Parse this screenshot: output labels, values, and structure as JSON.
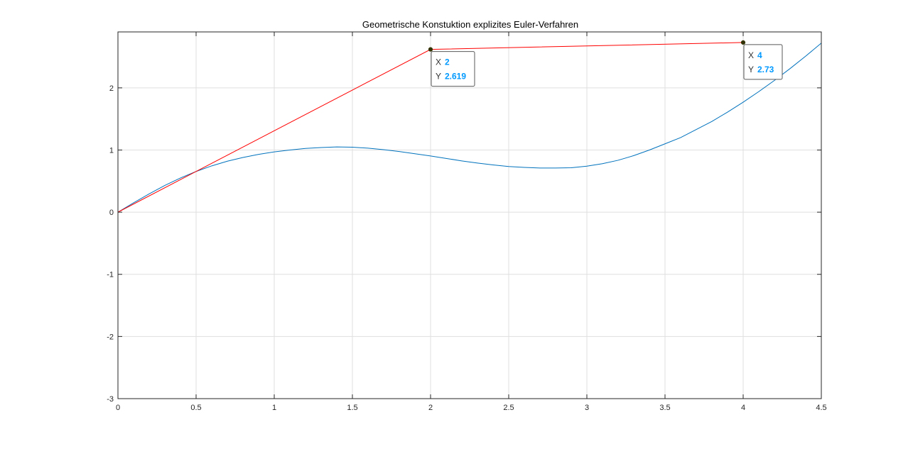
{
  "chart_data": {
    "type": "line",
    "title": "Geometrische Konstuktion explizites Euler-Verfahren",
    "xlabel": "",
    "ylabel": "",
    "xlim": [
      0,
      4.5
    ],
    "ylim": [
      -3,
      2.9
    ],
    "xticks": [
      0,
      0.5,
      1,
      1.5,
      2,
      2.5,
      3,
      3.5,
      4,
      4.5
    ],
    "xtick_labels": [
      "0",
      "0.5",
      "1",
      "1.5",
      "2",
      "2.5",
      "3",
      "3.5",
      "4",
      "4.5"
    ],
    "yticks": [
      -3,
      -2,
      -1,
      0,
      1,
      2
    ],
    "ytick_labels": [
      "-3",
      "-2",
      "-1",
      "0",
      "1",
      "2"
    ],
    "grid": true,
    "series": [
      {
        "color": "#0072bd",
        "x": [
          0,
          0.1,
          0.2,
          0.3,
          0.4,
          0.5,
          0.6,
          0.7,
          0.8,
          0.9,
          1.0,
          1.1,
          1.2,
          1.3,
          1.4,
          1.5,
          1.6,
          1.7,
          1.8,
          1.9,
          2.0,
          2.1,
          2.2,
          2.3,
          2.4,
          2.5,
          2.6,
          2.7,
          2.8,
          2.9,
          3.0,
          3.1,
          3.2,
          3.3,
          3.4,
          3.5,
          3.6,
          3.7,
          3.8,
          3.9,
          4.0,
          4.1,
          4.2,
          4.3,
          4.4,
          4.5
        ],
        "y": [
          0,
          0.15,
          0.295,
          0.43,
          0.55,
          0.655,
          0.745,
          0.82,
          0.88,
          0.93,
          0.97,
          1.0,
          1.025,
          1.04,
          1.05,
          1.045,
          1.03,
          1.005,
          0.975,
          0.94,
          0.905,
          0.865,
          0.825,
          0.79,
          0.76,
          0.735,
          0.72,
          0.71,
          0.71,
          0.715,
          0.74,
          0.78,
          0.835,
          0.91,
          1.0,
          1.1,
          1.2,
          1.33,
          1.46,
          1.61,
          1.77,
          1.94,
          2.12,
          2.31,
          2.51,
          2.72
        ]
      },
      {
        "color": "#ff0000",
        "x": [
          0,
          2,
          4
        ],
        "y": [
          0,
          2.619,
          2.73
        ],
        "markers": true
      }
    ],
    "datatips": [
      {
        "x_label": "X",
        "x_value": "2",
        "y_label": "Y",
        "y_value": "2.619",
        "x": 2,
        "y": 2.619
      },
      {
        "x_label": "X",
        "x_value": "4",
        "y_label": "Y",
        "y_value": "2.73",
        "x": 4,
        "y": 2.73
      }
    ],
    "colors": {
      "axis": "#262626",
      "grid": "#dfdfdf",
      "tip_border": "#595959",
      "tip_background": "#ffffff",
      "tip_value": "#0099ff",
      "marker": "#333300"
    }
  }
}
